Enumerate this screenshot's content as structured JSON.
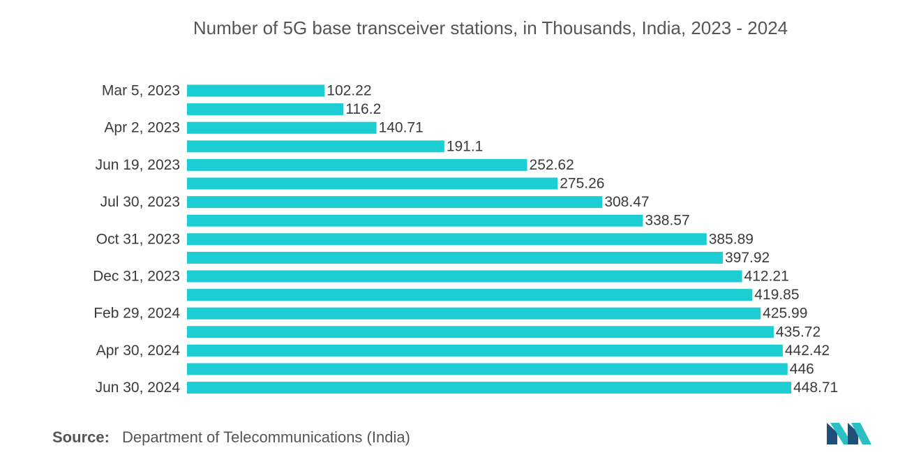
{
  "chart_data": {
    "type": "bar",
    "orientation": "horizontal",
    "title": "Number of 5G base transceiver stations, in Thousands, India, 2023 - 2024",
    "categories": [
      "Mar 5, 2023",
      null,
      "Apr 2, 2023",
      null,
      "Jun 19, 2023",
      null,
      "Jul 30, 2023",
      null,
      "Oct 31, 2023",
      null,
      "Dec 31, 2023",
      null,
      "Feb 29, 2024",
      null,
      "Apr 30, 2024",
      null,
      "Jun 30, 2024"
    ],
    "values": [
      102.22,
      116.2,
      140.71,
      191.1,
      252.62,
      275.26,
      308.47,
      338.57,
      385.89,
      397.92,
      412.21,
      419.85,
      425.99,
      435.72,
      442.42,
      446,
      448.71
    ],
    "color": "#1ccdd3",
    "source_label": "Source:",
    "source": "Department of Telecommunications (India)"
  }
}
